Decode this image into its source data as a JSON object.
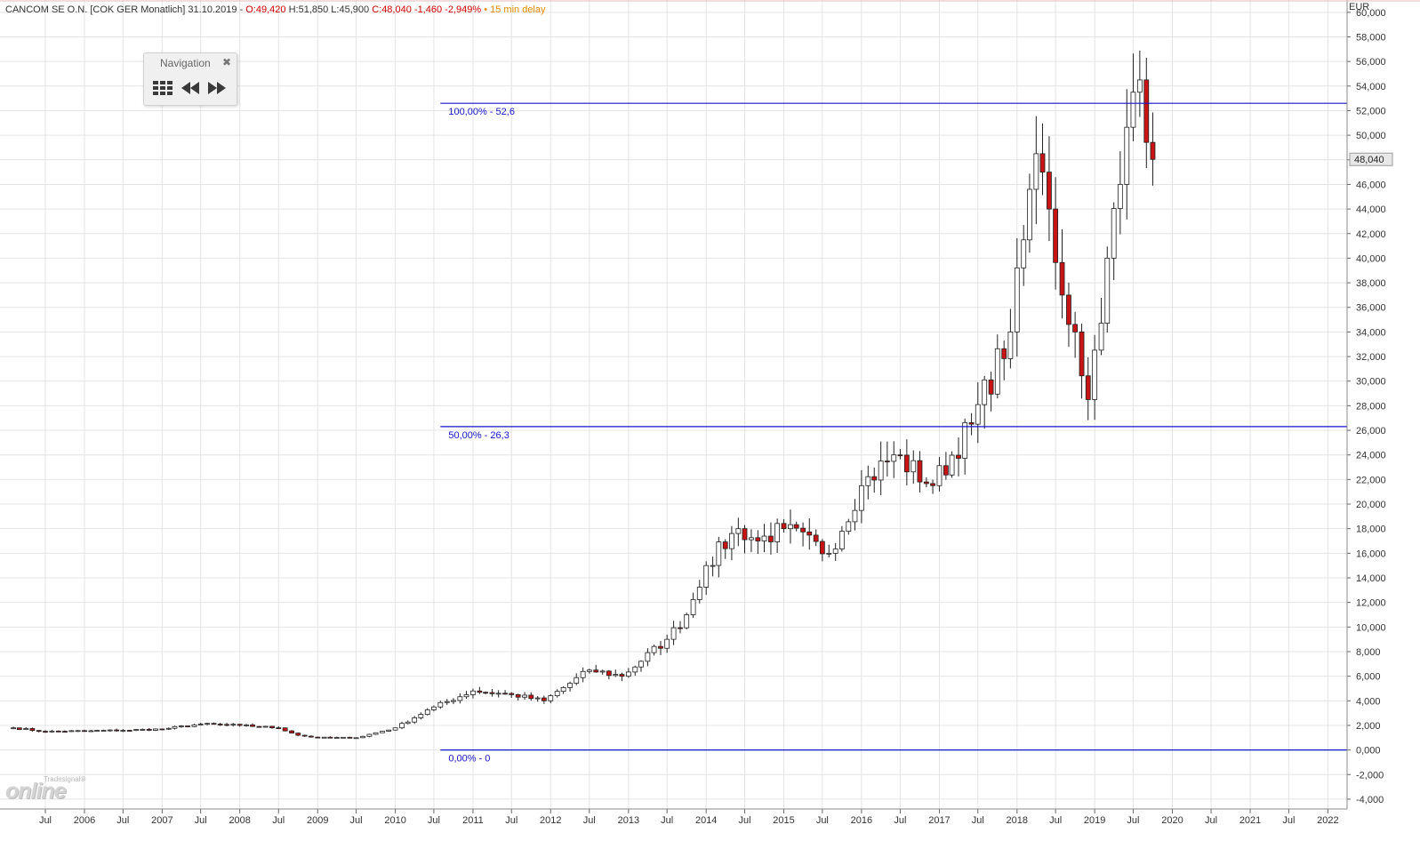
{
  "header": {
    "instrument": "CANCOM SE O.N.",
    "feed": "[COK GER Monatlich]",
    "date": "31.10.2019 -",
    "open": "O:49,420",
    "high": "H:51,850",
    "low": "L:45,900",
    "close": "C:48,040",
    "change": "-1,460",
    "change_pct": "-2,949%",
    "delay": "• 15 min delay"
  },
  "navigation": {
    "title": "Navigation",
    "close_icon": "close-icon",
    "grid_icon": "grid-icon",
    "back_icon": "rewind-icon",
    "forward_icon": "fast-forward-icon"
  },
  "logo": {
    "small": "Tradesignal®",
    "big": "online"
  },
  "colors": {
    "up_body": "#ffffff",
    "down_body": "#c81414",
    "wick": "#202020",
    "fib_line": "#1414c8",
    "grid": "#e4e4e4",
    "last_price_box": "#e8e8e8"
  },
  "chart_data": {
    "type": "candlestick",
    "title": "CANCOM SE O.N.",
    "currency_label": "EUR",
    "ylim": [
      -4.8,
      61
    ],
    "y_ticks": [
      -4,
      -2,
      0,
      2,
      4,
      6,
      8,
      10,
      12,
      14,
      16,
      18,
      20,
      22,
      24,
      26,
      28,
      30,
      32,
      34,
      36,
      38,
      40,
      42,
      44,
      46,
      48,
      50,
      52,
      54,
      56,
      58,
      60
    ],
    "y_tick_labels": [
      "-4,000",
      "-2,000",
      "0,000",
      "2,000",
      "4,000",
      "6,000",
      "8,000",
      "10,000",
      "12,000",
      "14,000",
      "16,000",
      "18,000",
      "20,000",
      "22,000",
      "24,000",
      "26,000",
      "28,000",
      "30,000",
      "32,000",
      "34,000",
      "36,000",
      "38,000",
      "40,000",
      "42,000",
      "44,000",
      "46,000",
      "48,000",
      "50,000",
      "52,000",
      "54,000",
      "56,000",
      "58,000",
      "60,000"
    ],
    "last_price": 48.04,
    "last_price_label": "48,040",
    "x_range": [
      "2005-02",
      "2022-07"
    ],
    "x_ticks": [
      {
        "date": "2005-07",
        "label": "Jul"
      },
      {
        "date": "2006-01",
        "label": "2006"
      },
      {
        "date": "2006-07",
        "label": "Jul"
      },
      {
        "date": "2007-01",
        "label": "2007"
      },
      {
        "date": "2007-07",
        "label": "Jul"
      },
      {
        "date": "2008-01",
        "label": "2008"
      },
      {
        "date": "2008-07",
        "label": "Jul"
      },
      {
        "date": "2009-01",
        "label": "2009"
      },
      {
        "date": "2009-07",
        "label": "Jul"
      },
      {
        "date": "2010-01",
        "label": "2010"
      },
      {
        "date": "2010-07",
        "label": "Jul"
      },
      {
        "date": "2011-01",
        "label": "2011"
      },
      {
        "date": "2011-07",
        "label": "Jul"
      },
      {
        "date": "2012-01",
        "label": "2012"
      },
      {
        "date": "2012-07",
        "label": "Jul"
      },
      {
        "date": "2013-01",
        "label": "2013"
      },
      {
        "date": "2013-07",
        "label": "Jul"
      },
      {
        "date": "2014-01",
        "label": "2014"
      },
      {
        "date": "2014-07",
        "label": "Jul"
      },
      {
        "date": "2015-01",
        "label": "2015"
      },
      {
        "date": "2015-07",
        "label": "Jul"
      },
      {
        "date": "2016-01",
        "label": "2016"
      },
      {
        "date": "2016-07",
        "label": "Jul"
      },
      {
        "date": "2017-01",
        "label": "2017"
      },
      {
        "date": "2017-07",
        "label": "Jul"
      },
      {
        "date": "2018-01",
        "label": "2018"
      },
      {
        "date": "2018-07",
        "label": "Jul"
      },
      {
        "date": "2019-01",
        "label": "2019"
      },
      {
        "date": "2019-07",
        "label": "Jul"
      },
      {
        "date": "2020-01",
        "label": "2020"
      },
      {
        "date": "2020-07",
        "label": "Jul"
      },
      {
        "date": "2021-01",
        "label": "2021"
      },
      {
        "date": "2021-07",
        "label": "Jul"
      },
      {
        "date": "2022-01",
        "label": "2022"
      }
    ],
    "fib_levels": [
      {
        "value": 52.6,
        "label": "100,00% - 52,6",
        "from": "2010-08"
      },
      {
        "value": 26.3,
        "label": "50,00% - 26,3",
        "from": "2010-08"
      },
      {
        "value": 0,
        "label": "0,00% - 0",
        "from": "2010-08"
      }
    ],
    "grid": true,
    "anchors": [
      [
        "2005-02",
        1.8
      ],
      [
        "2005-07",
        1.5
      ],
      [
        "2006-01",
        1.55
      ],
      [
        "2006-07",
        1.6
      ],
      [
        "2007-01",
        1.7
      ],
      [
        "2007-07",
        2.1
      ],
      [
        "2008-01",
        2.0
      ],
      [
        "2008-07",
        1.8
      ],
      [
        "2008-10",
        1.2
      ],
      [
        "2009-01",
        1.0
      ],
      [
        "2009-07",
        1.0
      ],
      [
        "2010-01",
        1.8
      ],
      [
        "2010-07",
        3.5
      ],
      [
        "2011-01",
        4.8
      ],
      [
        "2011-07",
        4.5
      ],
      [
        "2011-12",
        4.0
      ],
      [
        "2012-07",
        6.5
      ],
      [
        "2012-12",
        6.0
      ],
      [
        "2013-07",
        9.0
      ],
      [
        "2013-10",
        11.0
      ],
      [
        "2014-01",
        15.0
      ],
      [
        "2014-06",
        18.0
      ],
      [
        "2014-09",
        17.0
      ],
      [
        "2015-01",
        18.0
      ],
      [
        "2015-08",
        16.0
      ],
      [
        "2016-01",
        21.5
      ],
      [
        "2016-06",
        24.0
      ],
      [
        "2016-12",
        21.5
      ],
      [
        "2017-06",
        26.5
      ],
      [
        "2017-12",
        34.0
      ],
      [
        "2018-04",
        48.5
      ],
      [
        "2018-05",
        47.0
      ],
      [
        "2018-06",
        44.0
      ],
      [
        "2018-08",
        37.0
      ],
      [
        "2018-10",
        34.0
      ],
      [
        "2018-12",
        28.5
      ],
      [
        "2019-03",
        40.0
      ],
      [
        "2019-05",
        46.0
      ],
      [
        "2019-07",
        53.5
      ],
      [
        "2019-08",
        54.5
      ],
      [
        "2019-09",
        49.42
      ],
      [
        "2019-10",
        48.04
      ]
    ]
  }
}
